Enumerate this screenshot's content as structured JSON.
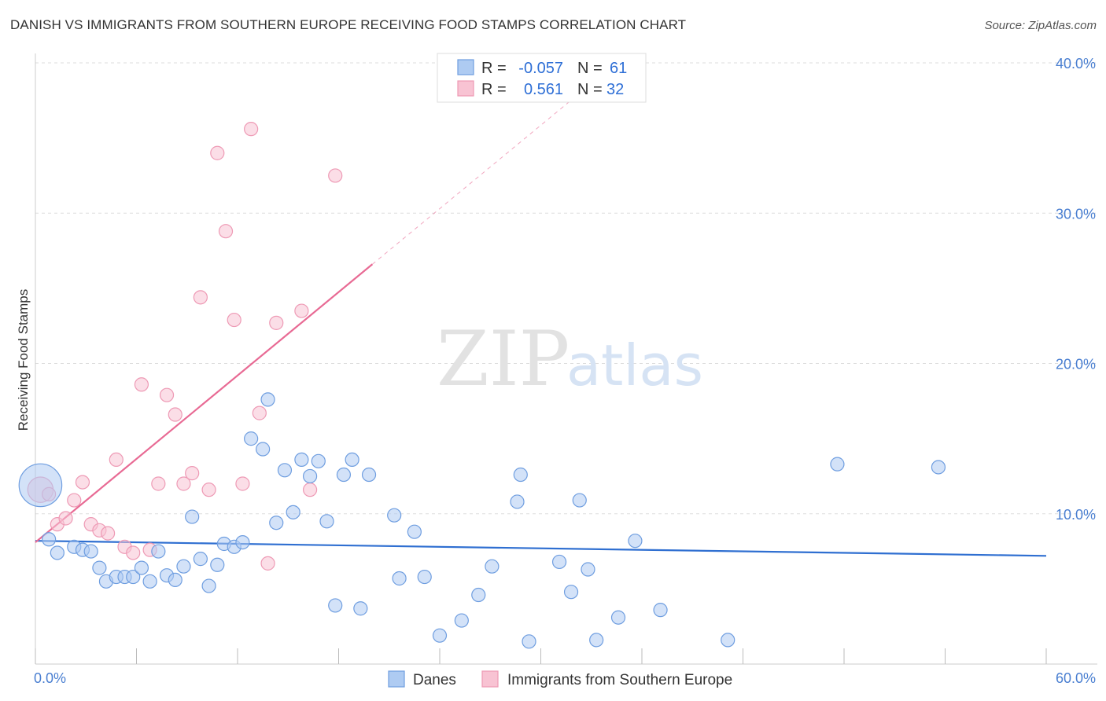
{
  "title": "DANISH VS IMMIGRANTS FROM SOUTHERN EUROPE RECEIVING FOOD STAMPS CORRELATION CHART",
  "source": "Source: ZipAtlas.com",
  "watermark": {
    "zip": "ZIP",
    "atlas": "atlas"
  },
  "colors": {
    "danes_fill": "#aecbf2",
    "danes_stroke": "#6f9ee0",
    "danes_line": "#2f6fd1",
    "imm_fill": "#f8c3d3",
    "imm_stroke": "#ee9ab5",
    "imm_line": "#e86a94",
    "grid": "#dddddd",
    "axis_text": "#4a7fd1"
  },
  "chart_data": {
    "type": "scatter",
    "title": "DANISH VS IMMIGRANTS FROM SOUTHERN EUROPE RECEIVING FOOD STAMPS CORRELATION CHART",
    "xlabel": "",
    "ylabel": "Receiving Food Stamps",
    "xlim": [
      0,
      60
    ],
    "ylim": [
      0,
      40
    ],
    "x_tick_labels": [
      "0.0%",
      "60.0%"
    ],
    "y_ticks": [
      10,
      20,
      30,
      40
    ],
    "y_tick_labels": [
      "10.0%",
      "20.0%",
      "30.0%",
      "40.0%"
    ],
    "legend_stats": [
      {
        "r_label": "R =",
        "r": "-0.057",
        "n_label": "N =",
        "n": "61"
      },
      {
        "r_label": "R =",
        "r": "0.561",
        "n_label": "N =",
        "n": "32"
      }
    ],
    "series": [
      {
        "name": "Danes",
        "trend": {
          "x": [
            0,
            60
          ],
          "y": [
            8.2,
            7.2
          ],
          "style": "solid"
        },
        "points": [
          [
            0.3,
            11.9,
            3.2
          ],
          [
            0.8,
            8.3,
            1
          ],
          [
            1.3,
            7.4,
            1
          ],
          [
            2.3,
            7.8,
            1
          ],
          [
            2.8,
            7.6,
            1
          ],
          [
            3.3,
            7.5,
            1
          ],
          [
            3.8,
            6.4,
            1
          ],
          [
            4.2,
            5.5,
            1
          ],
          [
            4.8,
            5.8,
            1
          ],
          [
            5.3,
            5.8,
            1
          ],
          [
            5.8,
            5.8,
            1
          ],
          [
            6.3,
            6.4,
            1
          ],
          [
            6.8,
            5.5,
            1
          ],
          [
            7.3,
            7.5,
            1
          ],
          [
            7.8,
            5.9,
            1
          ],
          [
            8.3,
            5.6,
            1
          ],
          [
            8.8,
            6.5,
            1
          ],
          [
            9.3,
            9.8,
            1
          ],
          [
            9.8,
            7.0,
            1
          ],
          [
            10.3,
            5.2,
            1
          ],
          [
            10.8,
            6.6,
            1
          ],
          [
            11.2,
            8.0,
            1
          ],
          [
            11.8,
            7.8,
            1
          ],
          [
            12.3,
            8.1,
            1
          ],
          [
            12.8,
            15.0,
            1
          ],
          [
            13.5,
            14.3,
            1
          ],
          [
            13.8,
            17.6,
            1
          ],
          [
            14.3,
            9.4,
            1
          ],
          [
            14.8,
            12.9,
            1
          ],
          [
            15.3,
            10.1,
            1
          ],
          [
            15.8,
            13.6,
            1
          ],
          [
            16.3,
            12.5,
            1
          ],
          [
            16.8,
            13.5,
            1
          ],
          [
            17.3,
            9.5,
            1
          ],
          [
            17.8,
            3.9,
            1
          ],
          [
            18.3,
            12.6,
            1
          ],
          [
            18.8,
            13.6,
            1
          ],
          [
            19.3,
            3.7,
            1
          ],
          [
            19.8,
            12.6,
            1
          ],
          [
            21.3,
            9.9,
            1
          ],
          [
            21.6,
            5.7,
            1
          ],
          [
            22.5,
            8.8,
            1
          ],
          [
            23.1,
            5.8,
            1
          ],
          [
            24.0,
            1.9,
            1
          ],
          [
            25.3,
            2.9,
            1
          ],
          [
            26.3,
            4.6,
            1
          ],
          [
            27.1,
            6.5,
            1
          ],
          [
            28.6,
            10.8,
            1
          ],
          [
            29.3,
            1.5,
            1
          ],
          [
            28.8,
            12.6,
            1
          ],
          [
            31.1,
            6.8,
            1
          ],
          [
            31.8,
            4.8,
            1
          ],
          [
            32.3,
            10.9,
            1
          ],
          [
            32.8,
            6.3,
            1
          ],
          [
            33.3,
            1.6,
            1
          ],
          [
            34.6,
            3.1,
            1
          ],
          [
            35.6,
            8.2,
            1
          ],
          [
            37.1,
            3.6,
            1
          ],
          [
            41.1,
            1.6,
            1
          ],
          [
            47.6,
            13.3,
            1
          ],
          [
            53.6,
            13.1,
            1
          ]
        ]
      },
      {
        "name": "Immigrants from Southern Europe",
        "trend": {
          "x": [
            0,
            20
          ],
          "y": [
            8.1,
            26.6
          ],
          "style": "solid",
          "dashed_extension_to_x": 33.5
        },
        "points": [
          [
            0.3,
            11.6,
            1.9
          ],
          [
            0.8,
            11.3,
            1
          ],
          [
            1.3,
            9.3,
            1
          ],
          [
            1.8,
            9.7,
            1
          ],
          [
            2.3,
            10.9,
            1
          ],
          [
            2.8,
            12.1,
            1
          ],
          [
            3.3,
            9.3,
            1
          ],
          [
            3.8,
            8.9,
            1
          ],
          [
            4.3,
            8.7,
            1
          ],
          [
            4.8,
            13.6,
            1
          ],
          [
            5.3,
            7.8,
            1
          ],
          [
            5.8,
            7.4,
            1
          ],
          [
            6.3,
            18.6,
            1
          ],
          [
            6.8,
            7.6,
            1
          ],
          [
            7.3,
            12.0,
            1
          ],
          [
            7.8,
            17.9,
            1
          ],
          [
            8.3,
            16.6,
            1
          ],
          [
            8.8,
            12.0,
            1
          ],
          [
            9.3,
            12.7,
            1
          ],
          [
            9.8,
            24.4,
            1
          ],
          [
            10.3,
            11.6,
            1
          ],
          [
            10.8,
            34.0,
            1
          ],
          [
            11.3,
            28.8,
            1
          ],
          [
            11.8,
            22.9,
            1
          ],
          [
            12.3,
            12.0,
            1
          ],
          [
            12.8,
            35.6,
            1
          ],
          [
            13.3,
            16.7,
            1
          ],
          [
            13.8,
            6.7,
            1
          ],
          [
            14.3,
            22.7,
            1
          ],
          [
            15.8,
            23.5,
            1
          ],
          [
            16.3,
            11.6,
            1
          ],
          [
            17.8,
            32.5,
            1
          ]
        ]
      }
    ]
  },
  "legend": {
    "items": [
      {
        "label": "Danes"
      },
      {
        "label": "Immigrants from Southern Europe"
      }
    ]
  }
}
